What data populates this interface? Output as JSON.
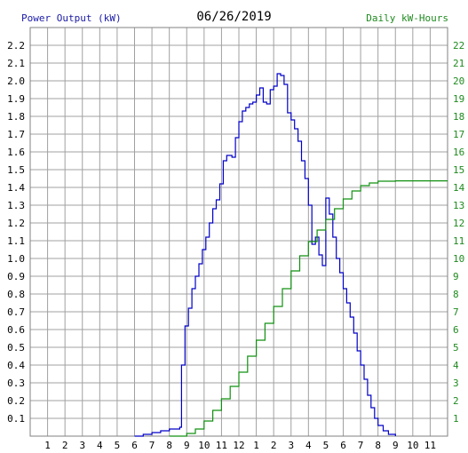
{
  "header": {
    "title": "06/26/2019",
    "left_axis_label": "Power Output (kW)",
    "right_axis_label": "Daily kW-Hours"
  },
  "colors": {
    "power_line": "#0000c8",
    "energy_line": "#109010",
    "grid": "#a0a0a0",
    "left_axis_text": "#1a1aa6",
    "right_axis_text": "#1f8a1f"
  },
  "chart_data": {
    "type": "line",
    "title": "06/26/2019",
    "x_ticks": [
      "1",
      "2",
      "3",
      "4",
      "5",
      "6",
      "7",
      "8",
      "9",
      "10",
      "11",
      "12",
      "1",
      "2",
      "3",
      "4",
      "5",
      "6",
      "7",
      "8",
      "9",
      "10",
      "11"
    ],
    "x_hour_range": [
      0,
      24
    ],
    "y_left": {
      "label": "Power Output (kW)",
      "ticks": [
        "0.1",
        "0.2",
        "0.3",
        "0.4",
        "0.5",
        "0.6",
        "0.7",
        "0.8",
        "0.9",
        "1.0",
        "1.1",
        "1.2",
        "1.3",
        "1.4",
        "1.5",
        "1.6",
        "1.7",
        "1.8",
        "1.9",
        "2.0",
        "2.1",
        "2.2"
      ],
      "range": [
        0,
        2.3
      ]
    },
    "y_right": {
      "label": "Daily kW-Hours",
      "ticks": [
        "1",
        "2",
        "3",
        "4",
        "5",
        "6",
        "7",
        "8",
        "9",
        "10",
        "11",
        "12",
        "13",
        "14",
        "15",
        "16",
        "17",
        "18",
        "19",
        "20",
        "21",
        "22"
      ],
      "range": [
        0,
        23
      ]
    },
    "grid": true,
    "series": [
      {
        "axis": "left",
        "points": [
          [
            6.0,
            0.0
          ],
          [
            6.5,
            0.01
          ],
          [
            7.0,
            0.02
          ],
          [
            7.5,
            0.03
          ],
          [
            8.0,
            0.04
          ],
          [
            8.6,
            0.05
          ],
          [
            8.7,
            0.4
          ],
          [
            8.9,
            0.62
          ],
          [
            9.1,
            0.72
          ],
          [
            9.3,
            0.83
          ],
          [
            9.5,
            0.9
          ],
          [
            9.7,
            0.97
          ],
          [
            9.9,
            1.05
          ],
          [
            10.1,
            1.12
          ],
          [
            10.3,
            1.2
          ],
          [
            10.5,
            1.28
          ],
          [
            10.7,
            1.33
          ],
          [
            10.9,
            1.42
          ],
          [
            11.1,
            1.55
          ],
          [
            11.3,
            1.58
          ],
          [
            11.6,
            1.57
          ],
          [
            11.8,
            1.68
          ],
          [
            12.0,
            1.77
          ],
          [
            12.2,
            1.83
          ],
          [
            12.4,
            1.85
          ],
          [
            12.6,
            1.87
          ],
          [
            12.8,
            1.88
          ],
          [
            13.0,
            1.92
          ],
          [
            13.2,
            1.96
          ],
          [
            13.4,
            1.88
          ],
          [
            13.6,
            1.87
          ],
          [
            13.8,
            1.95
          ],
          [
            14.0,
            1.97
          ],
          [
            14.2,
            2.04
          ],
          [
            14.4,
            2.03
          ],
          [
            14.6,
            1.98
          ],
          [
            14.8,
            1.82
          ],
          [
            15.0,
            1.78
          ],
          [
            15.2,
            1.73
          ],
          [
            15.4,
            1.66
          ],
          [
            15.6,
            1.55
          ],
          [
            15.8,
            1.45
          ],
          [
            16.0,
            1.3
          ],
          [
            16.2,
            1.08
          ],
          [
            16.4,
            1.12
          ],
          [
            16.6,
            1.02
          ],
          [
            16.8,
            0.96
          ],
          [
            17.0,
            1.34
          ],
          [
            17.2,
            1.25
          ],
          [
            17.4,
            1.12
          ],
          [
            17.6,
            1.0
          ],
          [
            17.8,
            0.92
          ],
          [
            18.0,
            0.83
          ],
          [
            18.2,
            0.75
          ],
          [
            18.4,
            0.67
          ],
          [
            18.6,
            0.58
          ],
          [
            18.8,
            0.48
          ],
          [
            19.0,
            0.4
          ],
          [
            19.2,
            0.32
          ],
          [
            19.4,
            0.23
          ],
          [
            19.6,
            0.16
          ],
          [
            19.8,
            0.1
          ],
          [
            20.0,
            0.06
          ],
          [
            20.3,
            0.03
          ],
          [
            20.6,
            0.01
          ],
          [
            21.0,
            0.0
          ]
        ]
      },
      {
        "axis": "right",
        "points": [
          [
            8.0,
            0.0
          ],
          [
            9.0,
            0.15
          ],
          [
            9.5,
            0.4
          ],
          [
            10.0,
            0.85
          ],
          [
            10.5,
            1.45
          ],
          [
            11.0,
            2.1
          ],
          [
            11.5,
            2.8
          ],
          [
            12.0,
            3.6
          ],
          [
            12.5,
            4.5
          ],
          [
            13.0,
            5.4
          ],
          [
            13.5,
            6.35
          ],
          [
            14.0,
            7.3
          ],
          [
            14.5,
            8.3
          ],
          [
            15.0,
            9.3
          ],
          [
            15.5,
            10.15
          ],
          [
            16.0,
            10.95
          ],
          [
            16.5,
            11.6
          ],
          [
            17.0,
            12.2
          ],
          [
            17.5,
            12.8
          ],
          [
            18.0,
            13.35
          ],
          [
            18.5,
            13.8
          ],
          [
            19.0,
            14.1
          ],
          [
            19.5,
            14.25
          ],
          [
            20.0,
            14.35
          ],
          [
            21.0,
            14.37
          ],
          [
            22.0,
            14.37
          ],
          [
            23.0,
            14.37
          ],
          [
            24.0,
            14.37
          ]
        ]
      }
    ]
  }
}
